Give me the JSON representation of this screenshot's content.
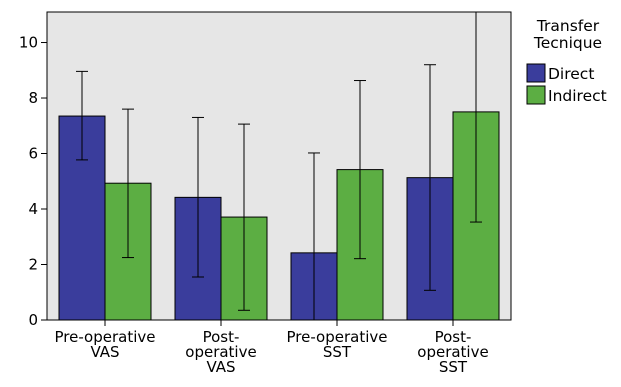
{
  "chart_data": {
    "type": "bar",
    "categories": [
      [
        "Pre-operative",
        "VAS"
      ],
      [
        "Post-",
        "operative",
        "VAS"
      ],
      [
        "Pre-operative",
        "SST"
      ],
      [
        "Post-",
        "operative",
        "SST"
      ]
    ],
    "series": [
      {
        "name": "Direct",
        "color": "#3a3d9c",
        "values": [
          7.35,
          4.42,
          2.42,
          5.13
        ],
        "error_low": [
          5.77,
          1.55,
          0.0,
          1.07
        ],
        "error_high": [
          8.96,
          7.3,
          6.02,
          9.2
        ]
      },
      {
        "name": "Indirect",
        "color": "#5cae43",
        "values": [
          4.93,
          3.71,
          5.42,
          7.5
        ],
        "error_low": [
          2.25,
          0.35,
          2.21,
          3.53
        ],
        "error_high": [
          7.6,
          7.06,
          8.63,
          11.1
        ]
      }
    ],
    "yticks": [
      0,
      2,
      4,
      6,
      8,
      10
    ],
    "ylim": [
      0,
      11.1
    ],
    "grid": false,
    "legend": {
      "title_lines": [
        "Transfer",
        "Tecnique"
      ],
      "placement": "right"
    }
  }
}
